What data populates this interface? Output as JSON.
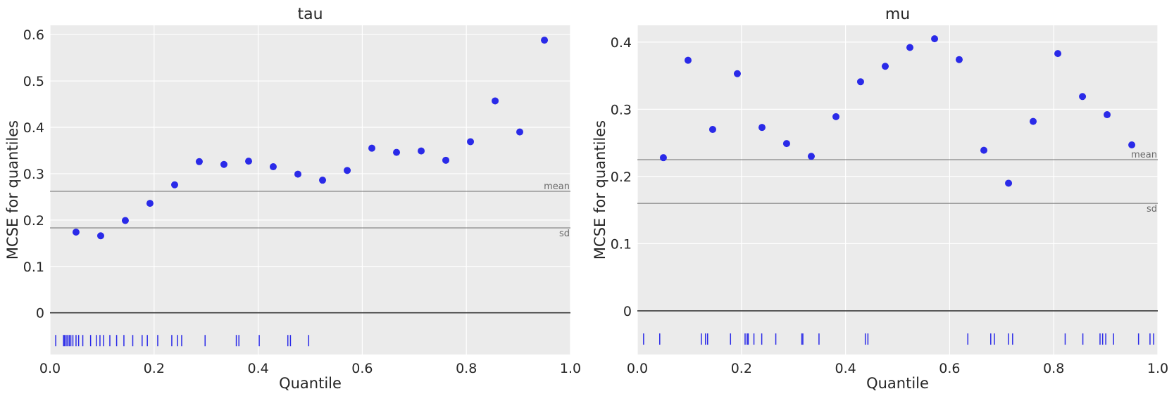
{
  "chart_data": [
    {
      "type": "scatter",
      "title": "tau",
      "xlabel": "Quantile",
      "ylabel": "MCSE for quantiles",
      "xlim": [
        0.0,
        1.0
      ],
      "ylim": [
        -0.09,
        0.62
      ],
      "x_ticks": [
        0.0,
        0.2,
        0.4,
        0.6,
        0.8,
        1.0
      ],
      "x_tick_labels": [
        "0.0",
        "0.2",
        "0.4",
        "0.6",
        "0.8",
        "1.0"
      ],
      "y_ticks": [
        0,
        0.1,
        0.2,
        0.3,
        0.4,
        0.5,
        0.6
      ],
      "y_tick_labels": [
        "0",
        "0.1",
        "0.2",
        "0.3",
        "0.4",
        "0.5",
        "0.6"
      ],
      "grid": true,
      "marker_color": "#2a2ae8",
      "x": [
        0.05,
        0.0974,
        0.1447,
        0.1921,
        0.2395,
        0.2868,
        0.3342,
        0.3816,
        0.4289,
        0.4763,
        0.5237,
        0.5711,
        0.6184,
        0.6658,
        0.7132,
        0.7605,
        0.8079,
        0.8553,
        0.9026,
        0.95
      ],
      "y": [
        0.174,
        0.166,
        0.199,
        0.236,
        0.276,
        0.326,
        0.32,
        0.327,
        0.315,
        0.299,
        0.286,
        0.307,
        0.355,
        0.346,
        0.349,
        0.329,
        0.369,
        0.457,
        0.39,
        0.588
      ],
      "reference_lines": [
        {
          "label": "mean",
          "value": 0.262
        },
        {
          "label": "sd",
          "value": 0.183
        }
      ],
      "zero_line": 0,
      "rug_y": -0.06,
      "rug_x": [
        0.011,
        0.026,
        0.028,
        0.031,
        0.034,
        0.037,
        0.04,
        0.044,
        0.05,
        0.055,
        0.063,
        0.078,
        0.089,
        0.096,
        0.103,
        0.115,
        0.128,
        0.142,
        0.159,
        0.177,
        0.187,
        0.207,
        0.234,
        0.245,
        0.253,
        0.298,
        0.358,
        0.363,
        0.402,
        0.457,
        0.462,
        0.497
      ]
    },
    {
      "type": "scatter",
      "title": "mu",
      "xlabel": "Quantile",
      "ylabel": "MCSE for quantiles",
      "xlim": [
        0.0,
        1.0
      ],
      "ylim": [
        -0.065,
        0.425
      ],
      "x_ticks": [
        0.0,
        0.2,
        0.4,
        0.6,
        0.8,
        1.0
      ],
      "x_tick_labels": [
        "0.0",
        "0.2",
        "0.4",
        "0.6",
        "0.8",
        "1.0"
      ],
      "y_ticks": [
        0,
        0.1,
        0.2,
        0.3,
        0.4
      ],
      "y_tick_labels": [
        "0",
        "0.1",
        "0.2",
        "0.3",
        "0.4"
      ],
      "grid": true,
      "marker_color": "#2a2ae8",
      "x": [
        0.05,
        0.0974,
        0.1447,
        0.1921,
        0.2395,
        0.2868,
        0.3342,
        0.3816,
        0.4289,
        0.4763,
        0.5237,
        0.5711,
        0.6184,
        0.6658,
        0.7132,
        0.7605,
        0.8079,
        0.8553,
        0.9026,
        0.95
      ],
      "y": [
        0.228,
        0.373,
        0.27,
        0.353,
        0.273,
        0.249,
        0.23,
        0.289,
        0.341,
        0.364,
        0.392,
        0.405,
        0.374,
        0.239,
        0.19,
        0.282,
        0.383,
        0.319,
        0.292,
        0.247
      ],
      "reference_lines": [
        {
          "label": "mean",
          "value": 0.225
        },
        {
          "label": "sd",
          "value": 0.16
        }
      ],
      "zero_line": 0,
      "rug_y": -0.042,
      "rug_x": [
        0.012,
        0.043,
        0.123,
        0.131,
        0.135,
        0.179,
        0.207,
        0.211,
        0.213,
        0.224,
        0.239,
        0.266,
        0.316,
        0.318,
        0.349,
        0.438,
        0.443,
        0.635,
        0.679,
        0.686,
        0.713,
        0.721,
        0.822,
        0.856,
        0.889,
        0.894,
        0.9,
        0.915,
        0.963,
        0.985,
        0.992
      ]
    }
  ]
}
